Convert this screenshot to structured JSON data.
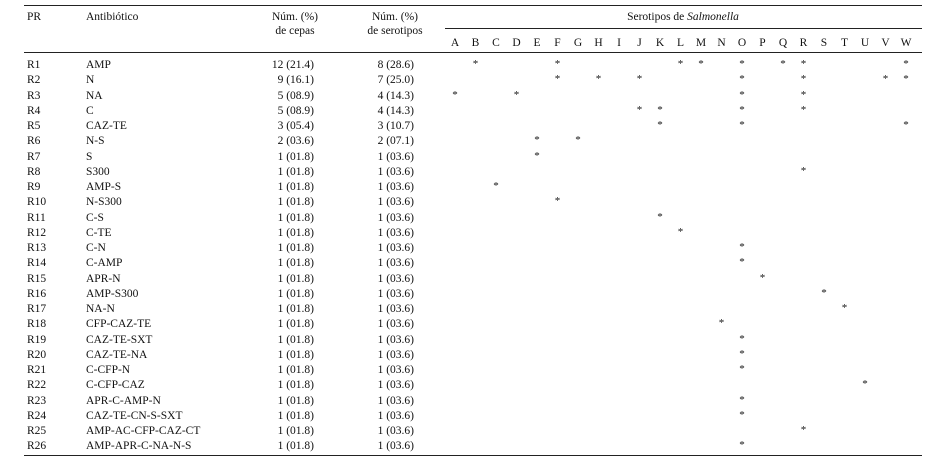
{
  "headers": {
    "pr": "PR",
    "antibiotic": "Antibiótico",
    "strains_1": "Núm. (%)",
    "strains_2": "de cepas",
    "serotypes_1": "Núm. (%)",
    "serotypes_2": "de serotipos",
    "serotype_group_prefix": "Serotipos de ",
    "serotype_group_italic": "Salmonella"
  },
  "serotype_letters": [
    "A",
    "B",
    "C",
    "D",
    "E",
    "F",
    "G",
    "H",
    "I",
    "J",
    "K",
    "L",
    "M",
    "N",
    "O",
    "P",
    "Q",
    "R",
    "S",
    "T",
    "U",
    "V",
    "W"
  ],
  "mark_symbol": "*",
  "rows": [
    {
      "pr": "R1",
      "antibiotic": "AMP",
      "strains": "12 (21.4)",
      "serotypes": "8 (28.6)",
      "marks": [
        "B",
        "F",
        "L",
        "M",
        "O",
        "Q",
        "R",
        "W"
      ]
    },
    {
      "pr": "R2",
      "antibiotic": "N",
      "strains": "9 (16.1)",
      "serotypes": "7 (25.0)",
      "marks": [
        "F",
        "H",
        "J",
        "O",
        "R",
        "V",
        "W"
      ]
    },
    {
      "pr": "R3",
      "antibiotic": "NA",
      "strains": "5 (08.9)",
      "serotypes": "4 (14.3)",
      "marks": [
        "A",
        "D",
        "O",
        "R"
      ]
    },
    {
      "pr": "R4",
      "antibiotic": "C",
      "strains": "5 (08.9)",
      "serotypes": "4 (14.3)",
      "marks": [
        "J",
        "K",
        "O",
        "R"
      ]
    },
    {
      "pr": "R5",
      "antibiotic": "CAZ-TE",
      "strains": "3 (05.4)",
      "serotypes": "3 (10.7)",
      "marks": [
        "K",
        "O",
        "W"
      ]
    },
    {
      "pr": "R6",
      "antibiotic": "N-S",
      "strains": "2 (03.6)",
      "serotypes": "2 (07.1)",
      "marks": [
        "E",
        "G"
      ]
    },
    {
      "pr": "R7",
      "antibiotic": "S",
      "strains": "1 (01.8)",
      "serotypes": "1 (03.6)",
      "marks": [
        "E"
      ]
    },
    {
      "pr": "R8",
      "antibiotic": "S300",
      "strains": "1 (01.8)",
      "serotypes": "1 (03.6)",
      "marks": [
        "R"
      ]
    },
    {
      "pr": "R9",
      "antibiotic": "AMP-S",
      "strains": "1 (01.8)",
      "serotypes": "1 (03.6)",
      "marks": [
        "C"
      ]
    },
    {
      "pr": "R10",
      "antibiotic": "N-S300",
      "strains": "1 (01.8)",
      "serotypes": "1 (03.6)",
      "marks": [
        "F"
      ]
    },
    {
      "pr": "R11",
      "antibiotic": "C-S",
      "strains": "1 (01.8)",
      "serotypes": "1 (03.6)",
      "marks": [
        "K"
      ]
    },
    {
      "pr": "R12",
      "antibiotic": "C-TE",
      "strains": "1 (01.8)",
      "serotypes": "1 (03.6)",
      "marks": [
        "L"
      ]
    },
    {
      "pr": "R13",
      "antibiotic": "C-N",
      "strains": "1 (01.8)",
      "serotypes": "1 (03.6)",
      "marks": [
        "O"
      ]
    },
    {
      "pr": "R14",
      "antibiotic": "C-AMP",
      "strains": "1 (01.8)",
      "serotypes": "1 (03.6)",
      "marks": [
        "O"
      ]
    },
    {
      "pr": "R15",
      "antibiotic": "APR-N",
      "strains": "1 (01.8)",
      "serotypes": "1 (03.6)",
      "marks": [
        "P"
      ]
    },
    {
      "pr": "R16",
      "antibiotic": "AMP-S300",
      "strains": "1 (01.8)",
      "serotypes": "1 (03.6)",
      "marks": [
        "S"
      ]
    },
    {
      "pr": "R17",
      "antibiotic": "NA-N",
      "strains": "1 (01.8)",
      "serotypes": "1 (03.6)",
      "marks": [
        "T"
      ]
    },
    {
      "pr": "R18",
      "antibiotic": "CFP-CAZ-TE",
      "strains": "1 (01.8)",
      "serotypes": "1 (03.6)",
      "marks": [
        "N"
      ]
    },
    {
      "pr": "R19",
      "antibiotic": "CAZ-TE-SXT",
      "strains": "1 (01.8)",
      "serotypes": "1 (03.6)",
      "marks": [
        "O"
      ]
    },
    {
      "pr": "R20",
      "antibiotic": "CAZ-TE-NA",
      "strains": "1 (01.8)",
      "serotypes": "1 (03.6)",
      "marks": [
        "O"
      ]
    },
    {
      "pr": "R21",
      "antibiotic": "C-CFP-N",
      "strains": "1 (01.8)",
      "serotypes": "1 (03.6)",
      "marks": [
        "O"
      ]
    },
    {
      "pr": "R22",
      "antibiotic": "C-CFP-CAZ",
      "strains": "1 (01.8)",
      "serotypes": "1 (03.6)",
      "marks": [
        "U"
      ]
    },
    {
      "pr": "R23",
      "antibiotic": "APR-C-AMP-N",
      "strains": "1 (01.8)",
      "serotypes": "1 (03.6)",
      "marks": [
        "O"
      ]
    },
    {
      "pr": "R24",
      "antibiotic": "CAZ-TE-CN-S-SXT",
      "strains": "1 (01.8)",
      "serotypes": "1 (03.6)",
      "marks": [
        "O"
      ]
    },
    {
      "pr": "R25",
      "antibiotic": "AMP-AC-CFP-CAZ-CT",
      "strains": "1 (01.8)",
      "serotypes": "1 (03.6)",
      "marks": [
        "R"
      ]
    },
    {
      "pr": "R26",
      "antibiotic": "AMP-APR-C-NA-N-S",
      "strains": "1 (01.8)",
      "serotypes": "1 (03.6)",
      "marks": [
        "O"
      ]
    }
  ]
}
